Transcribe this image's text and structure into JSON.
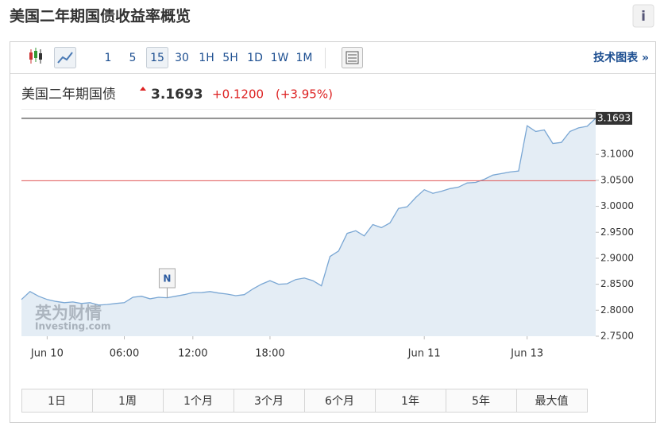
{
  "header": {
    "title": "美国二年期国债收益率概览",
    "info": "i"
  },
  "toolbar": {
    "intervals": [
      "1",
      "5",
      "15",
      "30",
      "1H",
      "5H",
      "1D",
      "1W",
      "1M"
    ],
    "selected_index": 2,
    "technical_chart": "技术图表 »"
  },
  "quote": {
    "name": "美国二年期国债",
    "price": "3.1693",
    "change": "+0.1200",
    "change_percent": "(+3.95%)"
  },
  "chart_data": {
    "type": "line",
    "x": [
      0,
      1,
      2,
      3,
      4,
      5,
      6,
      7,
      8,
      9,
      10,
      11,
      12,
      13,
      14,
      15,
      16,
      17,
      18,
      19,
      20,
      21,
      22,
      23,
      24,
      25,
      26,
      27,
      28,
      29,
      30,
      31,
      32,
      33,
      34,
      35,
      36,
      37,
      38,
      39,
      40,
      41,
      42,
      43,
      44,
      45,
      46,
      47,
      48,
      49,
      50,
      51,
      52,
      53,
      54,
      55,
      56,
      57,
      58,
      59,
      60,
      61,
      62,
      63,
      64,
      65,
      66,
      67
    ],
    "series": [
      {
        "color": "#7aa7d4",
        "fill": "#e4edf5",
        "values": [
          2.8206,
          2.836,
          2.827,
          2.8206,
          2.817,
          2.8145,
          2.816,
          2.813,
          2.8145,
          2.81,
          2.811,
          2.813,
          2.8145,
          2.825,
          2.827,
          2.822,
          2.825,
          2.824,
          2.827,
          2.83,
          2.834,
          2.834,
          2.836,
          2.833,
          2.831,
          2.828,
          2.83,
          2.841,
          2.85,
          2.857,
          2.85,
          2.851,
          2.859,
          2.862,
          2.857,
          2.847,
          2.9035,
          2.914,
          2.948,
          2.953,
          2.943,
          2.965,
          2.959,
          2.968,
          2.996,
          2.999,
          3.017,
          3.032,
          3.025,
          3.029,
          3.034,
          3.037,
          3.045,
          3.046,
          3.052,
          3.06,
          3.063,
          3.066,
          3.068,
          3.155,
          3.144,
          3.147,
          3.121,
          3.123,
          3.144,
          3.151,
          3.154,
          3.1693
        ]
      }
    ],
    "xlim": [
      0,
      67
    ],
    "xticks": [
      {
        "value": 3,
        "label": "Jun 10"
      },
      {
        "value": 12,
        "label": "06:00"
      },
      {
        "value": 20,
        "label": "12:00"
      },
      {
        "value": 29,
        "label": "18:00"
      },
      {
        "value": 47,
        "label": "Jun 11"
      },
      {
        "value": 59,
        "label": "Jun 13"
      }
    ],
    "ylim": [
      2.75,
      3.1875
    ],
    "yticks": [
      {
        "value": 2.75,
        "label": "2.7500"
      },
      {
        "value": 2.8,
        "label": "2.8000"
      },
      {
        "value": 2.85,
        "label": "2.8500"
      },
      {
        "value": 2.9,
        "label": "2.9000"
      },
      {
        "value": 2.95,
        "label": "2.9500"
      },
      {
        "value": 3.0,
        "label": "3.0000"
      },
      {
        "value": 3.05,
        "label": "3.0500"
      },
      {
        "value": 3.1,
        "label": "3.1000"
      }
    ],
    "reference_lines": [
      {
        "value": 3.1693,
        "color": "#222222"
      },
      {
        "value": 3.0493,
        "color": "#e05555"
      }
    ],
    "annotations": [
      {
        "x": 17,
        "label": "N"
      }
    ]
  },
  "watermark": {
    "brand": "英为财情",
    "site": "Investing.com"
  },
  "range_buttons": [
    "1日",
    "1周",
    "1个月",
    "3个月",
    "6个月",
    "1年",
    "5年",
    "最大值"
  ]
}
